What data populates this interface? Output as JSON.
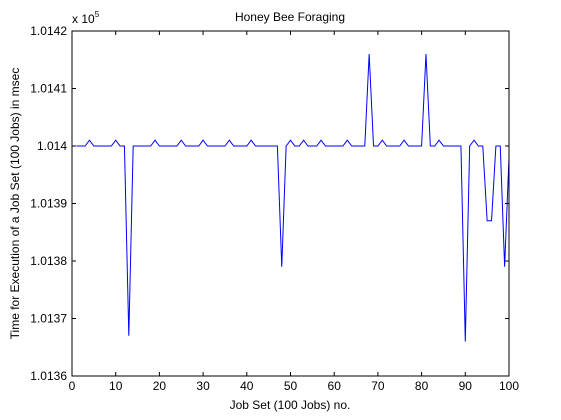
{
  "chart_data": {
    "type": "line",
    "title": "Honey Bee Foraging",
    "xlabel": "Job Set (100 Jobs) no.",
    "ylabel": "Time for Execution of a Job Set (100 Jobs) in msec",
    "exponent_label": {
      "prefix": "x 10",
      "power": "5"
    },
    "xlim": [
      0,
      100
    ],
    "ylim": [
      1.0136,
      1.0142
    ],
    "xticks": [
      0,
      10,
      20,
      30,
      40,
      50,
      60,
      70,
      80,
      90,
      100
    ],
    "xtick_labels": [
      "0",
      "10",
      "20",
      "30",
      "40",
      "50",
      "60",
      "70",
      "80",
      "90",
      "100"
    ],
    "yticks": [
      1.0136,
      1.0137,
      1.0138,
      1.0139,
      1.014,
      1.0141,
      1.0142
    ],
    "ytick_labels": [
      "1.0136",
      "1.0137",
      "1.0138",
      "1.0139",
      "1.014",
      "1.0141",
      "1.0142"
    ],
    "grid": false,
    "line_color": "#0000ff",
    "series": [
      {
        "x": [
          1,
          2,
          3,
          4,
          5,
          6,
          7,
          8,
          9,
          10,
          11,
          12,
          13,
          14,
          15,
          16,
          17,
          18,
          19,
          20,
          21,
          22,
          23,
          24,
          25,
          26,
          27,
          28,
          29,
          30,
          31,
          32,
          33,
          34,
          35,
          36,
          37,
          38,
          39,
          40,
          41,
          42,
          43,
          44,
          45,
          46,
          47,
          48,
          49,
          50,
          51,
          52,
          53,
          54,
          55,
          56,
          57,
          58,
          59,
          60,
          61,
          62,
          63,
          64,
          65,
          66,
          67,
          68,
          69,
          70,
          71,
          72,
          73,
          74,
          75,
          76,
          77,
          78,
          79,
          80,
          81,
          82,
          83,
          84,
          85,
          86,
          87,
          88,
          89,
          90,
          91,
          92,
          93,
          94,
          95,
          96,
          97,
          98,
          99,
          100
        ],
        "values": [
          1.014,
          1.014,
          1.014,
          1.01401,
          1.014,
          1.014,
          1.014,
          1.014,
          1.014,
          1.01401,
          1.014,
          1.014,
          1.01367,
          1.014,
          1.014,
          1.014,
          1.014,
          1.014,
          1.01401,
          1.014,
          1.014,
          1.014,
          1.014,
          1.014,
          1.01401,
          1.014,
          1.014,
          1.014,
          1.014,
          1.01401,
          1.014,
          1.014,
          1.014,
          1.014,
          1.014,
          1.01401,
          1.014,
          1.014,
          1.014,
          1.014,
          1.01401,
          1.014,
          1.014,
          1.014,
          1.014,
          1.014,
          1.014,
          1.01379,
          1.014,
          1.01401,
          1.014,
          1.014,
          1.01401,
          1.014,
          1.014,
          1.014,
          1.01401,
          1.014,
          1.014,
          1.014,
          1.014,
          1.014,
          1.01401,
          1.014,
          1.014,
          1.014,
          1.014,
          1.01416,
          1.014,
          1.014,
          1.01401,
          1.014,
          1.014,
          1.014,
          1.014,
          1.01401,
          1.014,
          1.014,
          1.014,
          1.014,
          1.01416,
          1.014,
          1.014,
          1.01401,
          1.014,
          1.014,
          1.014,
          1.014,
          1.014,
          1.01366,
          1.014,
          1.01401,
          1.014,
          1.014,
          1.01387,
          1.01387,
          1.014,
          1.014,
          1.01379,
          1.01398
        ]
      }
    ]
  }
}
